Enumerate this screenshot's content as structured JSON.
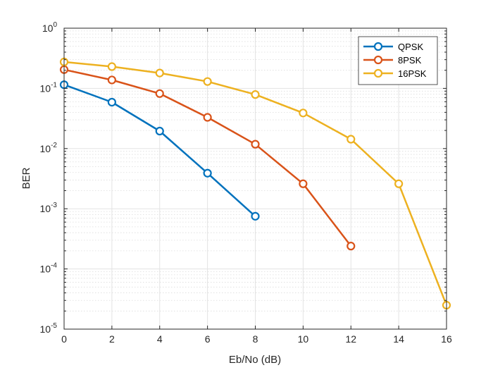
{
  "chart_data": {
    "type": "line",
    "title": "",
    "xlabel": "Eb/No (dB)",
    "ylabel": "BER",
    "xlim": [
      0,
      16
    ],
    "ylim": [
      1e-05,
      1
    ],
    "yscale": "log",
    "x_ticks": [
      0,
      2,
      4,
      6,
      8,
      10,
      12,
      14,
      16
    ],
    "x_tick_labels": [
      "0",
      "2",
      "4",
      "6",
      "8",
      "10",
      "12",
      "14",
      "16"
    ],
    "y_ticks": [
      {
        "value": 1e-05,
        "base": "10",
        "exp": "-5"
      },
      {
        "value": 0.0001,
        "base": "10",
        "exp": "-4"
      },
      {
        "value": 0.001,
        "base": "10",
        "exp": "-3"
      },
      {
        "value": 0.01,
        "base": "10",
        "exp": "-2"
      },
      {
        "value": 0.1,
        "base": "10",
        "exp": "-1"
      },
      {
        "value": 1,
        "base": "10",
        "exp": "0"
      }
    ],
    "grid": true,
    "minor_grid": true,
    "legend_position": "top-right",
    "series": [
      {
        "name": "QPSK",
        "color": "#0072BD",
        "x": [
          0,
          2,
          4,
          6,
          8
        ],
        "values": [
          0.115,
          0.059,
          0.0195,
          0.0039,
          0.00075
        ]
      },
      {
        "name": "8PSK",
        "color": "#D95319",
        "x": [
          0,
          2,
          4,
          6,
          8,
          10,
          12
        ],
        "values": [
          0.205,
          0.138,
          0.082,
          0.033,
          0.0118,
          0.0026,
          0.00024
        ]
      },
      {
        "name": "16PSK",
        "color": "#EDB120",
        "x": [
          0,
          2,
          4,
          6,
          8,
          10,
          12,
          14,
          16
        ],
        "values": [
          0.275,
          0.23,
          0.18,
          0.13,
          0.079,
          0.039,
          0.0143,
          0.0026,
          2.5e-05
        ]
      }
    ]
  }
}
